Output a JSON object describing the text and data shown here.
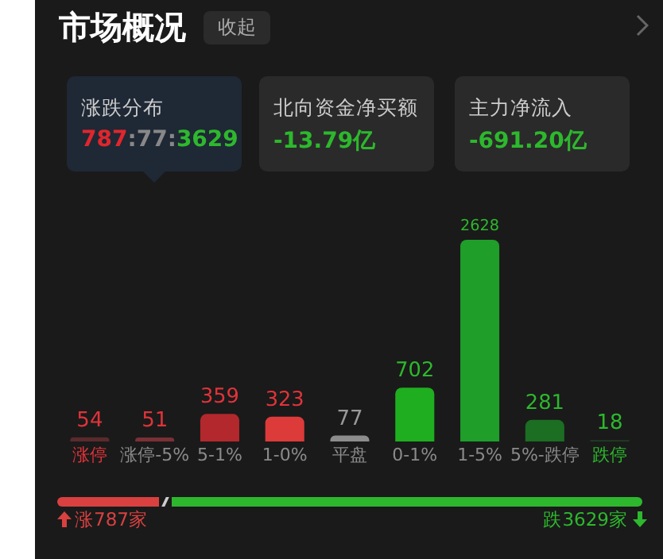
{
  "chart_data": {
    "type": "bar",
    "title": "市场概况",
    "annotations": [
      "收起",
      "涨跌分布",
      "787:77:3629",
      "北向资金净买额",
      "-13.79亿",
      "主力净流入",
      "-691.20亿",
      "涨787家",
      "跌3629家"
    ],
    "categories": [
      "涨停",
      "涨停-5%",
      "5-1%",
      "1-0%",
      "平盘",
      "0-1%",
      "1-5%",
      "5%-跌停",
      "跌停"
    ],
    "values": [
      54,
      51,
      359,
      323,
      77,
      702,
      2628,
      281,
      18
    ],
    "colors": [
      "#5a2a2d",
      "#7a3034",
      "#b3282d",
      "#dd3a3a",
      "#8c8c8c",
      "#1fae1f",
      "#1f9e2a",
      "#1b6e22",
      "#1f3f24"
    ],
    "ylim": [
      0,
      2628
    ],
    "tick_labels": "x",
    "data_labels": true
  }
}
